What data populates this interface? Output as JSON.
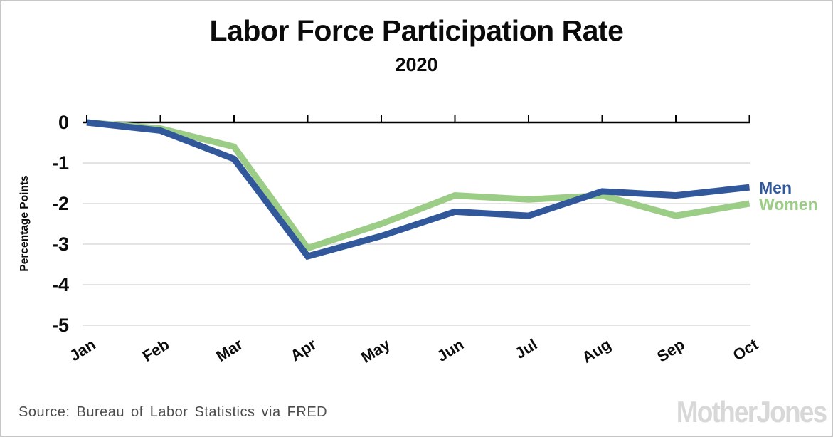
{
  "chart_data": {
    "type": "line",
    "title": "Labor Force Participation Rate",
    "subtitle": "2020",
    "categories": [
      "Jan",
      "Feb",
      "Mar",
      "Apr",
      "May",
      "Jun",
      "Jul",
      "Aug",
      "Sep",
      "Oct"
    ],
    "series": [
      {
        "name": "Men",
        "color": "#31589B",
        "values": [
          0,
          -0.2,
          -0.9,
          -3.3,
          -2.8,
          -2.2,
          -2.3,
          -1.7,
          -1.8,
          -1.6
        ]
      },
      {
        "name": "Women",
        "color": "#9CCD87",
        "values": [
          0,
          -0.15,
          -0.6,
          -3.1,
          -2.5,
          -1.8,
          -1.9,
          -1.8,
          -2.3,
          -2.0
        ]
      }
    ],
    "xlabel": "",
    "ylabel": "Percentage Points",
    "yticks": [
      0,
      -1,
      -2,
      -3,
      -4,
      -5
    ],
    "ylim": [
      -5,
      0
    ],
    "grid": true,
    "legend_position": "right-of-last-point",
    "axis_color": "#000000",
    "grid_color": "#DCDCDC",
    "tick_label_color": "#0b0b0b"
  },
  "footer": {
    "source": "Source: Bureau of Labor Statistics via FRED",
    "logo": "MotherJones"
  }
}
